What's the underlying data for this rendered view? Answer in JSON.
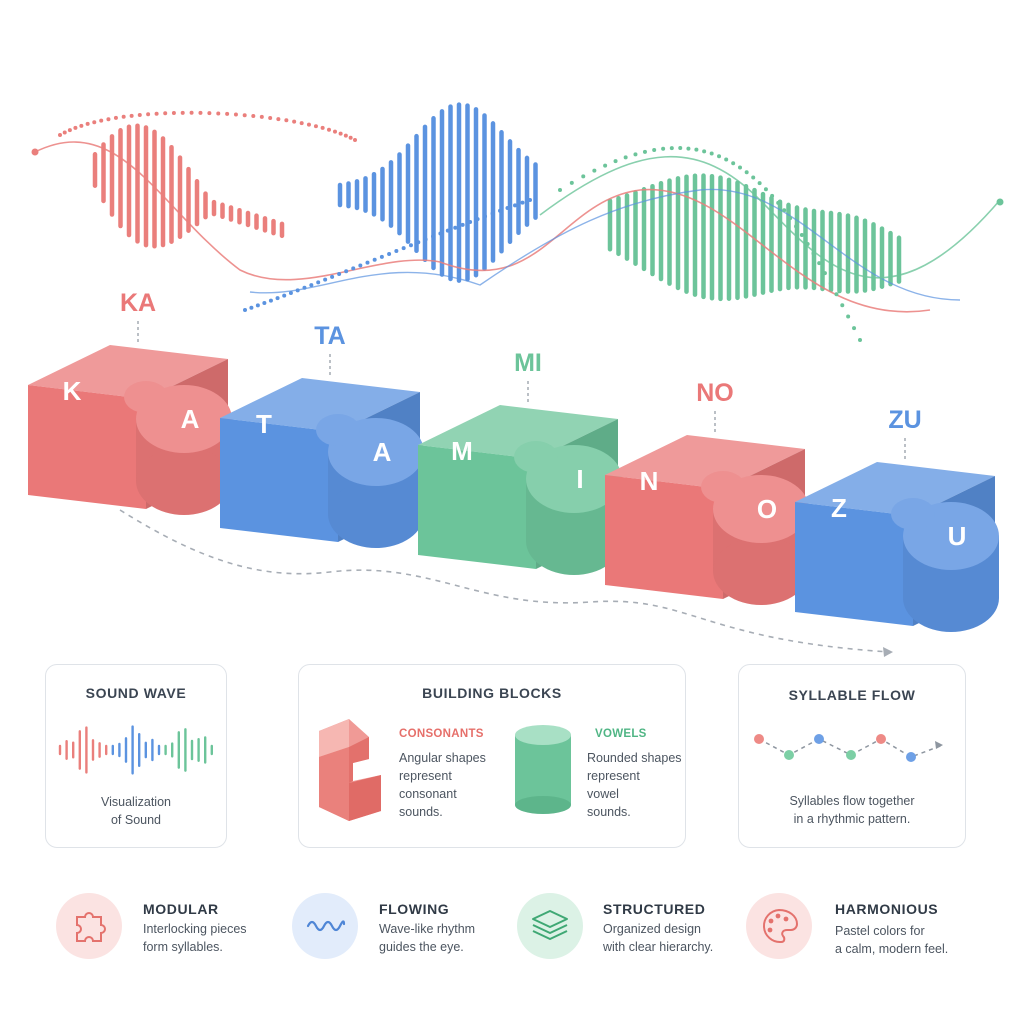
{
  "colors": {
    "consonant": "#ea7f7c",
    "vowel_blue": "#5b93e0",
    "vowel_green": "#6cc49a",
    "dark_text": "#303a46"
  },
  "syllables": [
    {
      "label": "KA",
      "consonant": "K",
      "vowel": "A",
      "color": "#ea7878"
    },
    {
      "label": "TA",
      "consonant": "T",
      "vowel": "A",
      "color": "#5b93e0"
    },
    {
      "label": "MI",
      "consonant": "M",
      "vowel": "I",
      "color": "#6cc49a"
    },
    {
      "label": "NO",
      "consonant": "N",
      "vowel": "O",
      "color": "#ea7878"
    },
    {
      "label": "ZU",
      "consonant": "Z",
      "vowel": "U",
      "color": "#5b93e0"
    }
  ],
  "panels": {
    "sound_wave": {
      "title": "SOUND WAVE",
      "caption_line1": "Visualization",
      "caption_line2": "of Sound"
    },
    "building_blocks": {
      "title": "BUILDING BLOCKS",
      "consonants_label": "CONSONANTS",
      "consonants_text": [
        "Angular shapes",
        "represent",
        "consonant",
        "sounds."
      ],
      "vowels_label": "VOWELS",
      "vowels_text": [
        "Rounded shapes",
        "represent",
        "vowel",
        "sounds."
      ]
    },
    "syllable_flow": {
      "title": "SYLLABLE FLOW",
      "caption_line1": "Syllables flow together",
      "caption_line2": "in a rhythmic pattern."
    }
  },
  "features": [
    {
      "title": "MODULAR",
      "line1": "Interlocking pieces",
      "line2": "form syllables.",
      "icon": "puzzle-icon"
    },
    {
      "title": "FLOWING",
      "line1": "Wave-like rhythm",
      "line2": "guides the eye.",
      "icon": "wave-icon"
    },
    {
      "title": "STRUCTURED",
      "line1": "Organized design",
      "line2": "with clear hierarchy.",
      "icon": "layers-icon"
    },
    {
      "title": "HARMONIOUS",
      "line1": "Pastel colors for",
      "line2": "a calm, modern feel.",
      "icon": "palette-icon"
    }
  ]
}
